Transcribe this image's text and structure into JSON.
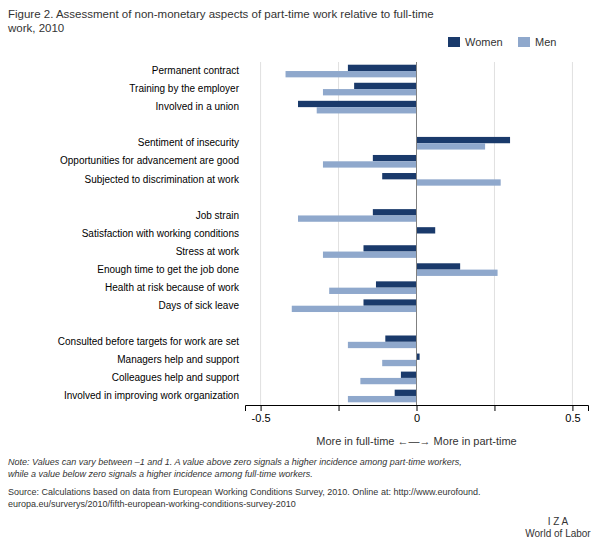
{
  "chart_data": {
    "type": "bar",
    "orientation": "horizontal",
    "title": "Figure 2. Assessment of non-monetary aspects of part-time work relative to full-time\nwork, 2010",
    "xlabel": "More in full-time ←—→ More in part-time",
    "categories": [
      "Permanent contract",
      "Training by the employer",
      "Involved in a union",
      null,
      "Sentiment of insecurity",
      "Opportunities for advancement are good",
      "Subjected to discrimination at work",
      null,
      "Job strain",
      "Satisfaction with working conditions",
      "Stress at work",
      "Enough time to get the job done",
      "Health at risk because of work",
      "Days of sick leave",
      null,
      "Consulted before targets for work are set",
      "Managers help and support",
      "Colleagues help and support",
      "Involved in improving work organization"
    ],
    "series": [
      {
        "name": "Women",
        "color": "#1a3a6b",
        "values": [
          -0.22,
          -0.2,
          -0.38,
          null,
          0.3,
          -0.14,
          -0.11,
          null,
          -0.14,
          0.06,
          -0.17,
          0.14,
          -0.13,
          -0.17,
          null,
          -0.1,
          0.01,
          -0.05,
          -0.07
        ]
      },
      {
        "name": "Men",
        "color": "#8fa8cc",
        "values": [
          -0.42,
          -0.3,
          -0.32,
          null,
          0.22,
          -0.3,
          0.27,
          null,
          -0.38,
          0.0,
          -0.3,
          0.26,
          -0.28,
          -0.4,
          null,
          -0.22,
          -0.11,
          -0.18,
          -0.22
        ]
      }
    ],
    "xlim": [
      -0.55,
      0.55
    ],
    "xticks": [
      -0.5,
      {
        "value": -0.25,
        "label": ""
      },
      0,
      {
        "value": 0.25,
        "label": ""
      },
      0.5
    ],
    "grid": true,
    "legend": "top-right",
    "annotations": [
      "Note: Values can vary between –1 and 1. A value above zero signals a higher incidence among part-time workers,\nwhile a value below zero signals a higher incidence among full-time workers.",
      "Source: Calculations based on data from European Working Conditions Survey, 2010. Online at: http://www.eurofound.\neuropa.eu/surverys/2010/fifth-european-working-conditions-survey-2010",
      "I Z A\nWorld of Labor"
    ]
  }
}
